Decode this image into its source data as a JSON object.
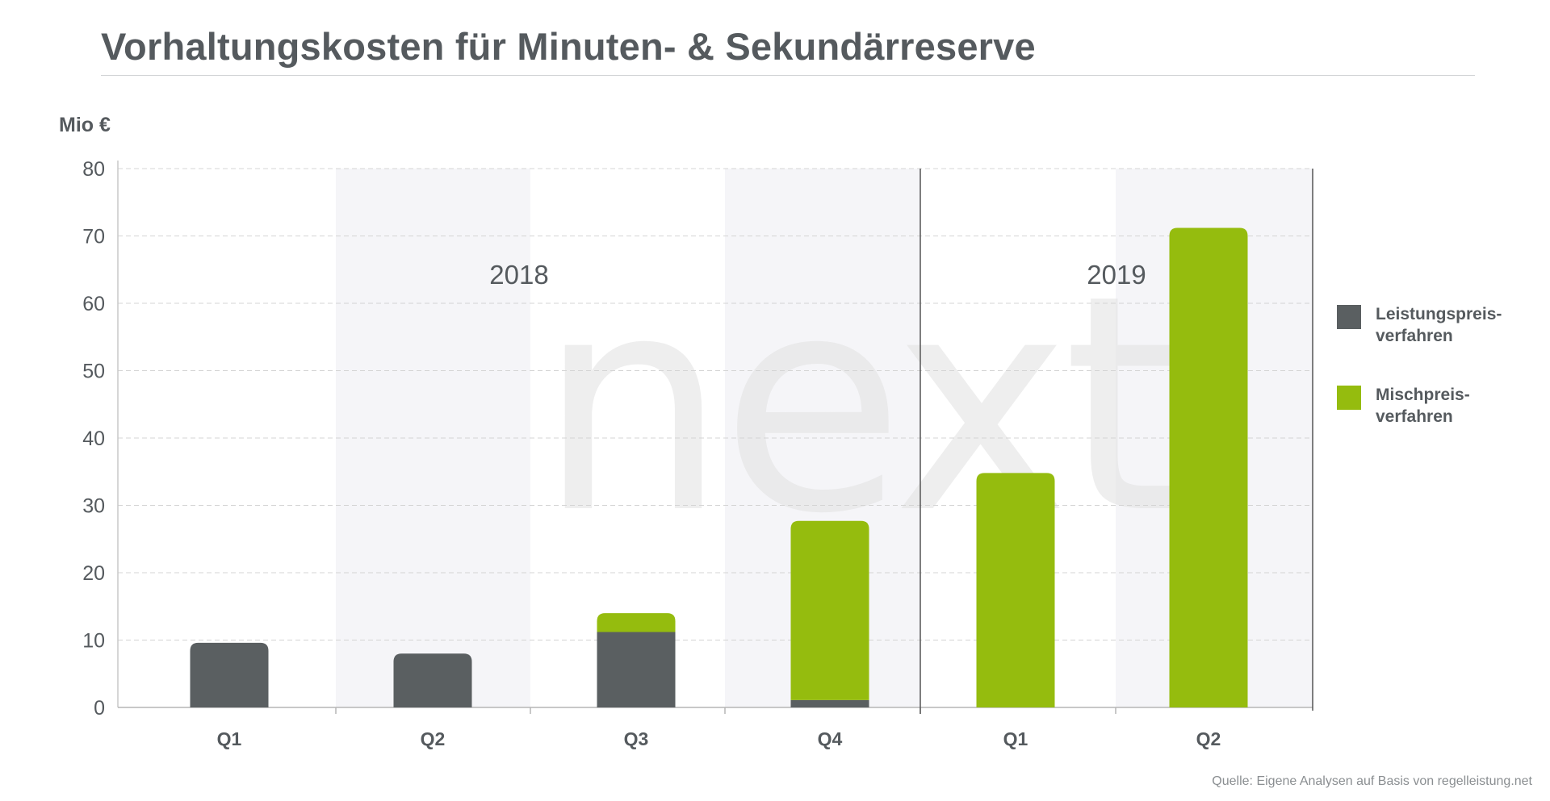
{
  "title": "Vorhaltungskosten für Minuten- & Sekundärreserve",
  "source": "Quelle: Eigene Analysen auf Basis von regelleistung.net",
  "watermark": "next",
  "colors": {
    "leistungspreis": "#5a5f61",
    "mischpreis": "#95bc0e",
    "band": "#f5f5f8",
    "text": "#555a5e",
    "grid": "#d4d4d4"
  },
  "chart_data": {
    "type": "bar",
    "stacked": true,
    "ylabel": "Mio €",
    "ylim": [
      0,
      80
    ],
    "yticks": [
      0,
      10,
      20,
      30,
      40,
      50,
      60,
      70,
      80
    ],
    "grid": true,
    "legend_position": "right",
    "categories": [
      "Q1",
      "Q2",
      "Q3",
      "Q4",
      "Q1",
      "Q2"
    ],
    "groups": [
      {
        "label": "2018",
        "categories": [
          0,
          1,
          2,
          3
        ]
      },
      {
        "label": "2019",
        "categories": [
          4,
          5
        ]
      }
    ],
    "series": [
      {
        "name": "Leistungspreis-\nverfahren",
        "legend_lines": [
          "Leistungspreis-",
          "verfahren"
        ],
        "color": "#5a5f61",
        "values": [
          9.6,
          8.0,
          11.2,
          1.1,
          0,
          0
        ]
      },
      {
        "name": "Mischpreis-\nverfahren",
        "legend_lines": [
          "Mischpreis-",
          "verfahren"
        ],
        "color": "#95bc0e",
        "values": [
          0,
          0,
          2.8,
          26.6,
          34.8,
          71.2
        ]
      }
    ]
  }
}
